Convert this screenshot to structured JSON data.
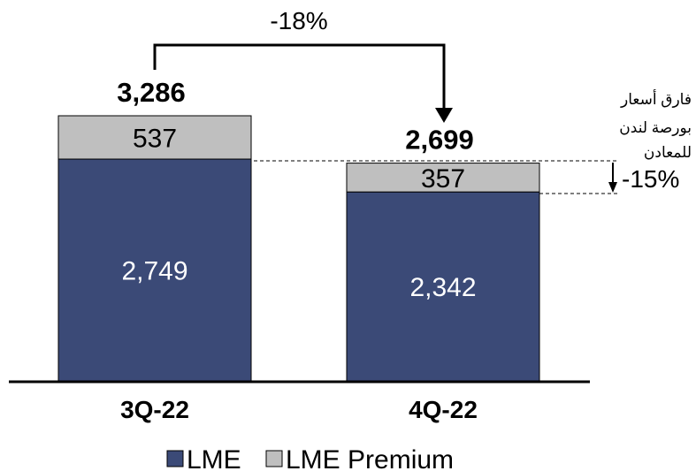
{
  "chart_data": {
    "type": "bar",
    "stacked": true,
    "categories": [
      "3Q-22",
      "4Q-22"
    ],
    "series": [
      {
        "name": "LME",
        "values": [
          2749,
          2342
        ],
        "labels": [
          "2,749",
          "2,342"
        ],
        "color": "#3b4a77"
      },
      {
        "name": "LME Premium",
        "values": [
          537,
          357
        ],
        "labels": [
          "537",
          "357"
        ],
        "color": "#bfbfbf"
      }
    ],
    "totals": [
      "3,286",
      "2,699"
    ],
    "total_values": [
      3286,
      2699
    ],
    "change_label": "-18%",
    "premium_change_label": "-15%",
    "annotation_lines": [
      "فارق أسعار",
      "بورصة لندن",
      "للمعادن"
    ],
    "ylim": [
      0,
      3286
    ],
    "legend_position": "bottom",
    "grid": false
  }
}
